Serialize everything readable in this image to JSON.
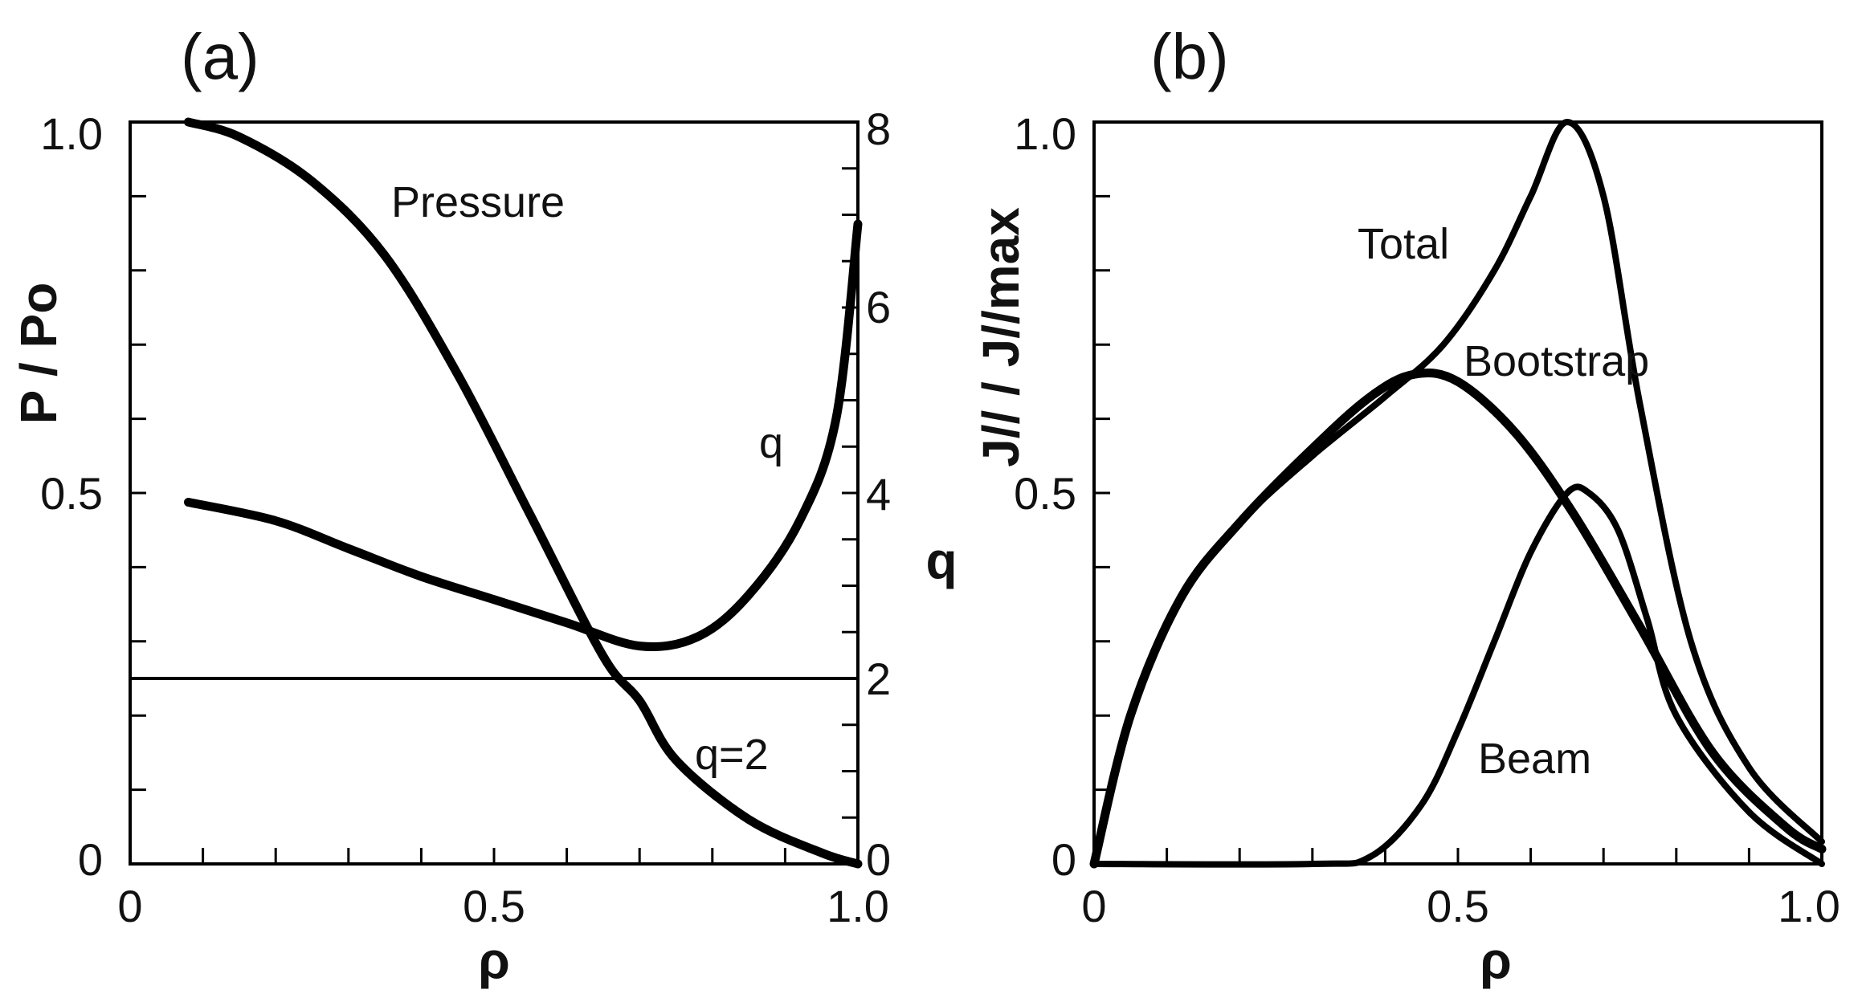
{
  "chart_data": [
    {
      "panel": "(a)",
      "type": "line",
      "xlabel": "ρ",
      "ylabel": "P / Po",
      "y2label": "q",
      "xlim": [
        0,
        1.0
      ],
      "ylim": [
        0,
        1.0
      ],
      "y2lim": [
        0,
        8
      ],
      "x_ticks": [
        "0",
        "0.5",
        "1.0"
      ],
      "y_ticks": [
        "0",
        "0.5",
        "1.0"
      ],
      "y2_ticks": [
        "0",
        "2",
        "4",
        "6",
        "8"
      ],
      "series": [
        {
          "name": "Pressure",
          "axis": "left",
          "x": [
            0.08,
            0.15,
            0.25,
            0.35,
            0.45,
            0.55,
            0.65,
            0.7,
            0.75,
            0.85,
            0.95,
            1.0
          ],
          "y": [
            1.0,
            0.98,
            0.92,
            0.82,
            0.66,
            0.47,
            0.28,
            0.22,
            0.14,
            0.06,
            0.015,
            0.0
          ]
        },
        {
          "name": "q",
          "axis": "right",
          "x": [
            0.08,
            0.2,
            0.3,
            0.4,
            0.5,
            0.6,
            0.7,
            0.78,
            0.85,
            0.92,
            0.97,
            1.0
          ],
          "y": [
            3.9,
            3.7,
            3.4,
            3.1,
            2.85,
            2.6,
            2.35,
            2.45,
            2.9,
            3.7,
            4.8,
            6.9
          ]
        }
      ],
      "reference_lines": [
        {
          "axis": "right",
          "y": 2,
          "label": "q=2"
        }
      ]
    },
    {
      "panel": "(b)",
      "type": "line",
      "xlabel": "ρ",
      "ylabel": "J// / J//max",
      "xlim": [
        0,
        1.0
      ],
      "ylim": [
        0,
        1.0
      ],
      "x_ticks": [
        "0",
        "0.5",
        "1.0"
      ],
      "y_ticks": [
        "0",
        "0.5",
        "1.0"
      ],
      "series": [
        {
          "name": "Total",
          "x": [
            0.0,
            0.05,
            0.12,
            0.2,
            0.3,
            0.4,
            0.48,
            0.55,
            0.6,
            0.65,
            0.7,
            0.75,
            0.82,
            0.9,
            1.0
          ],
          "y": [
            0.0,
            0.2,
            0.36,
            0.46,
            0.55,
            0.63,
            0.7,
            0.8,
            0.9,
            1.0,
            0.9,
            0.62,
            0.3,
            0.13,
            0.03
          ]
        },
        {
          "name": "Bootstrap",
          "x": [
            0.0,
            0.05,
            0.12,
            0.2,
            0.3,
            0.38,
            0.44,
            0.5,
            0.58,
            0.66,
            0.75,
            0.85,
            0.95,
            1.0
          ],
          "y": [
            0.0,
            0.2,
            0.36,
            0.46,
            0.56,
            0.63,
            0.66,
            0.65,
            0.58,
            0.47,
            0.32,
            0.15,
            0.05,
            0.02
          ]
        },
        {
          "name": "Beam",
          "x": [
            0.0,
            0.3,
            0.38,
            0.45,
            0.5,
            0.55,
            0.6,
            0.65,
            0.68,
            0.72,
            0.76,
            0.8,
            0.9,
            1.0
          ],
          "y": [
            0.0,
            0.0,
            0.01,
            0.08,
            0.18,
            0.3,
            0.42,
            0.5,
            0.5,
            0.45,
            0.33,
            0.2,
            0.07,
            0.0
          ]
        }
      ]
    }
  ]
}
